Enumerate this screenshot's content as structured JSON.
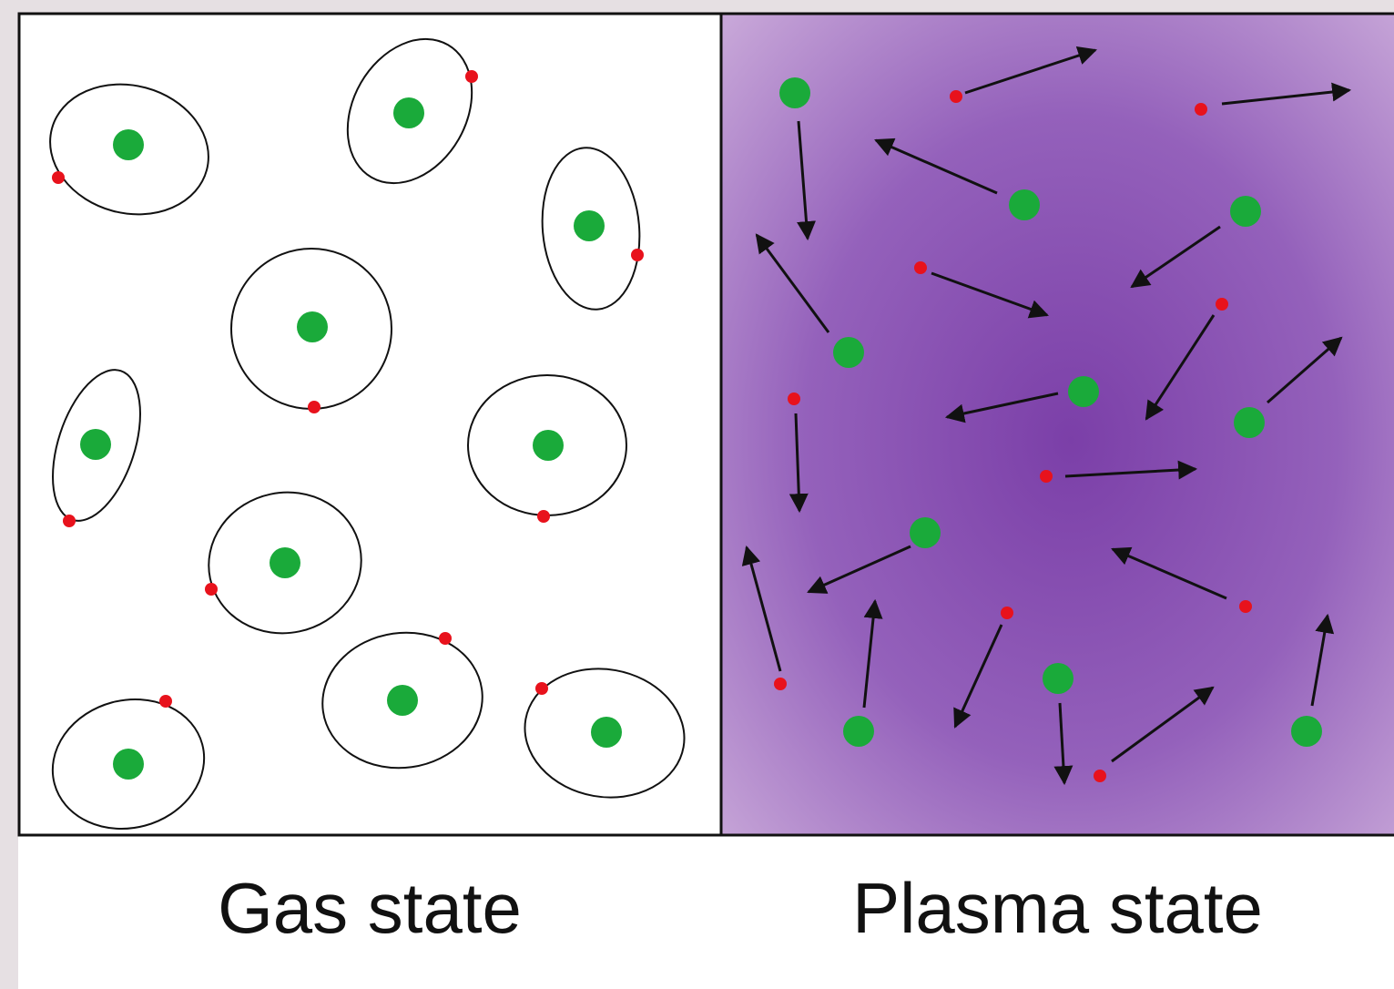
{
  "captions": {
    "gas": "Gas state",
    "plasma": "Plasma state"
  },
  "colors": {
    "nucleus": "#1aaa3a",
    "electron": "#e8121c",
    "orbit": "#111111",
    "arrow": "#111111",
    "plasma_center": "#7b3fa8",
    "plasma_edge": "#c7a6d8",
    "gas_background": "#ffffff"
  }
}
